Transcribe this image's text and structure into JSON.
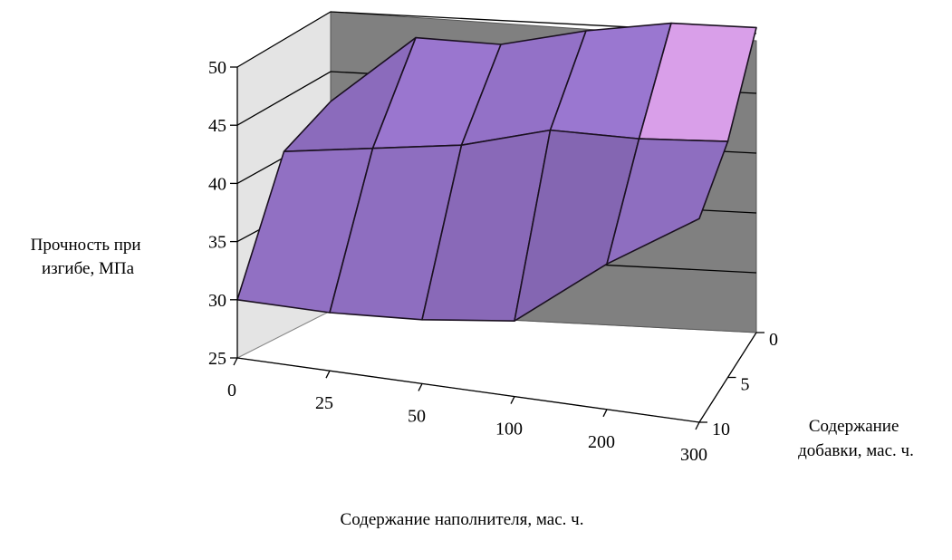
{
  "chart_data": {
    "type": "surface",
    "title": "",
    "zlabel": "Прочность при изгибе, МПа",
    "zlabel_lines": [
      "Прочность при",
      "изгибе, МПа"
    ],
    "xlabel": "Содержание наполнителя, мас. ч.",
    "ylabel": "Содержание добавки, мас. ч.",
    "ylabel_lines": [
      "Содержание",
      "добавки, мас. ч."
    ],
    "zlim": [
      25,
      50
    ],
    "z_ticks": [
      "25",
      "30",
      "35",
      "40",
      "45",
      "50"
    ],
    "x_categories": [
      "0",
      "25",
      "50",
      "100",
      "200",
      "300"
    ],
    "y_categories": [
      "0",
      "5",
      "10"
    ],
    "values": [
      [
        42.5,
        48.2,
        48.0,
        49.5,
        50.5,
        50.5
      ],
      [
        40.5,
        41.5,
        42.5,
        44.5,
        44.5,
        45.0
      ],
      [
        30.0,
        30.0,
        30.5,
        31.5,
        37.5,
        42.5
      ]
    ],
    "grid": true,
    "colors": {
      "surface": "#a680e0",
      "surface_light": "#e0a8f8",
      "back_wall": "#808080",
      "side_wall": "#d0d0d0",
      "floor": "#e8e8e8"
    }
  }
}
